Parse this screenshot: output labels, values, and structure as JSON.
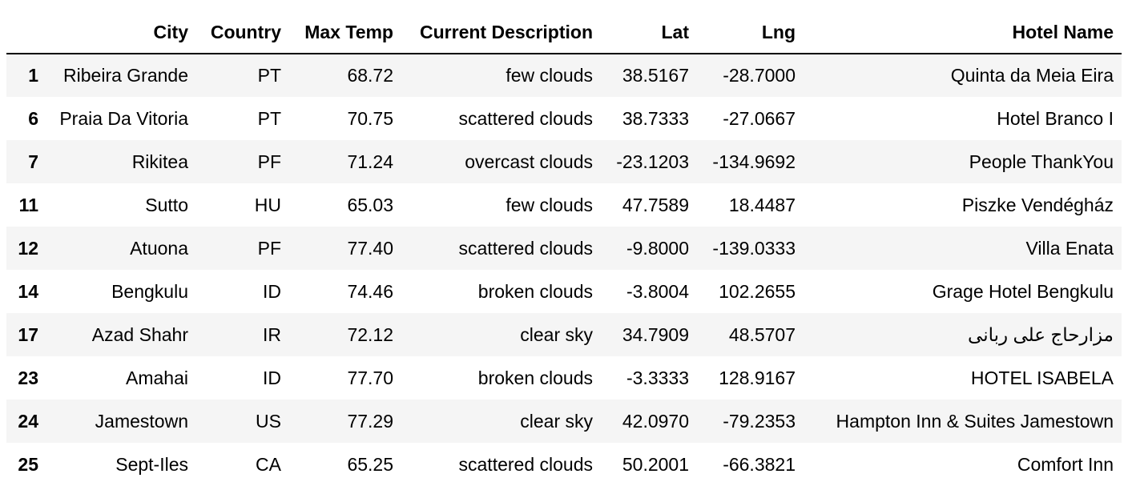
{
  "table": {
    "columns": [
      "",
      "City",
      "Country",
      "Max Temp",
      "Current Description",
      "Lat",
      "Lng",
      "Hotel Name"
    ],
    "rows": [
      {
        "index": "1",
        "city": "Ribeira Grande",
        "country": "PT",
        "max_temp": "68.72",
        "description": "few clouds",
        "lat": "38.5167",
        "lng": "-28.7000",
        "hotel": "Quinta da Meia Eira"
      },
      {
        "index": "6",
        "city": "Praia Da Vitoria",
        "country": "PT",
        "max_temp": "70.75",
        "description": "scattered clouds",
        "lat": "38.7333",
        "lng": "-27.0667",
        "hotel": "Hotel Branco I"
      },
      {
        "index": "7",
        "city": "Rikitea",
        "country": "PF",
        "max_temp": "71.24",
        "description": "overcast clouds",
        "lat": "-23.1203",
        "lng": "-134.9692",
        "hotel": "People ThankYou"
      },
      {
        "index": "11",
        "city": "Sutto",
        "country": "HU",
        "max_temp": "65.03",
        "description": "few clouds",
        "lat": "47.7589",
        "lng": "18.4487",
        "hotel": "Piszke Vendégház"
      },
      {
        "index": "12",
        "city": "Atuona",
        "country": "PF",
        "max_temp": "77.40",
        "description": "scattered clouds",
        "lat": "-9.8000",
        "lng": "-139.0333",
        "hotel": "Villa Enata"
      },
      {
        "index": "14",
        "city": "Bengkulu",
        "country": "ID",
        "max_temp": "74.46",
        "description": "broken clouds",
        "lat": "-3.8004",
        "lng": "102.2655",
        "hotel": "Grage Hotel Bengkulu"
      },
      {
        "index": "17",
        "city": "Azad Shahr",
        "country": "IR",
        "max_temp": "72.12",
        "description": "clear sky",
        "lat": "34.7909",
        "lng": "48.5707",
        "hotel": "مزارحاج علی ربانی"
      },
      {
        "index": "23",
        "city": "Amahai",
        "country": "ID",
        "max_temp": "77.70",
        "description": "broken clouds",
        "lat": "-3.3333",
        "lng": "128.9167",
        "hotel": "HOTEL ISABELA"
      },
      {
        "index": "24",
        "city": "Jamestown",
        "country": "US",
        "max_temp": "77.29",
        "description": "clear sky",
        "lat": "42.0970",
        "lng": "-79.2353",
        "hotel": "Hampton Inn & Suites Jamestown"
      },
      {
        "index": "25",
        "city": "Sept-Iles",
        "country": "CA",
        "max_temp": "65.25",
        "description": "scattered clouds",
        "lat": "50.2001",
        "lng": "-66.3821",
        "hotel": "Comfort Inn"
      }
    ]
  },
  "colors": {
    "stripe": "#f5f5f5",
    "background": "#ffffff",
    "header_rule": "#000000"
  }
}
